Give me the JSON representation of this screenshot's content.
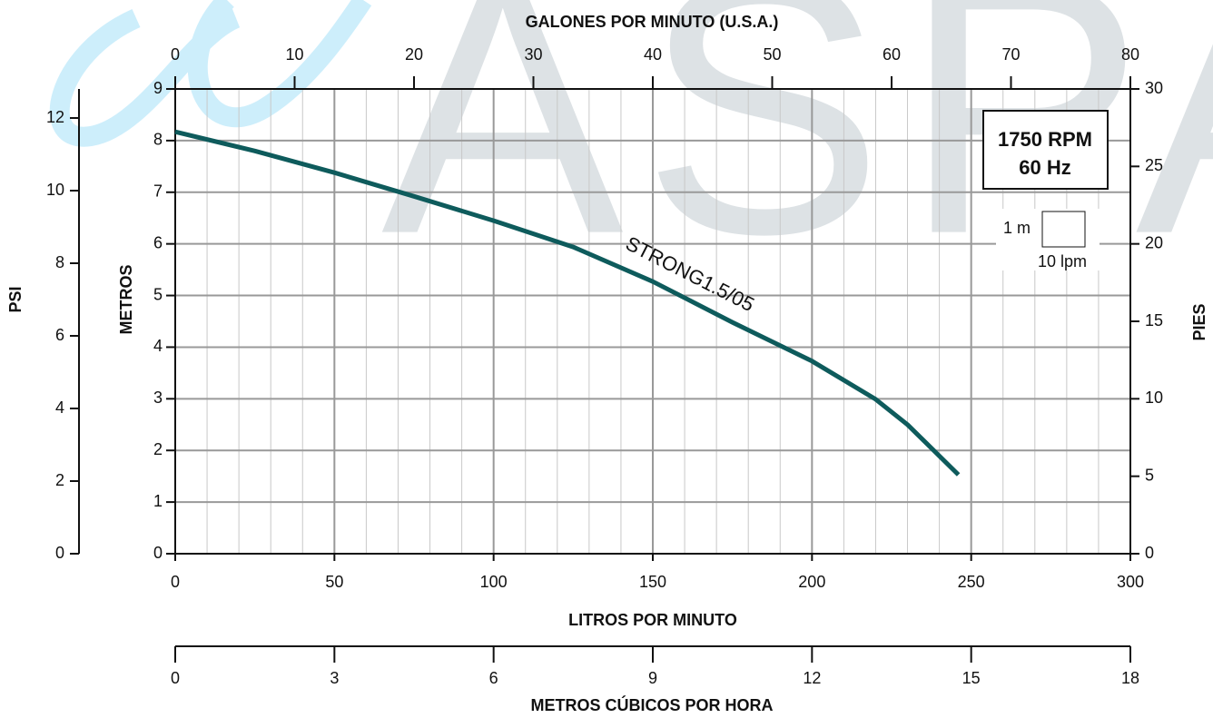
{
  "chart_data": {
    "type": "line",
    "watermark": "ASPA",
    "x_label": "LITROS POR MINUTO",
    "xlim": [
      0,
      300
    ],
    "xticks": [
      0,
      50,
      100,
      150,
      200,
      250,
      300
    ],
    "minor_xticks": [
      10,
      20,
      30,
      40,
      60,
      70,
      80,
      90,
      110,
      120,
      130,
      140,
      160,
      170,
      180,
      190,
      210,
      220,
      230,
      240,
      260,
      270,
      280,
      290
    ],
    "y_label": "METROS",
    "ylim": [
      0,
      9
    ],
    "yticks": [
      0,
      1,
      2,
      3,
      4,
      5,
      6,
      7,
      8,
      9
    ],
    "y2_label": "PIES",
    "y2lim": [
      0,
      30
    ],
    "y2ticks": [
      0,
      5,
      10,
      15,
      20,
      25,
      30
    ],
    "y3_label": "PSI",
    "y3lim": [
      0,
      12.8
    ],
    "y3ticks": [
      0,
      2,
      4,
      6,
      8,
      10,
      12
    ],
    "top_x_label": "GALONES POR MINUTO (U.S.A.)",
    "top_xlim": [
      0,
      80
    ],
    "top_xticks": [
      0,
      10,
      20,
      30,
      40,
      50,
      60,
      70,
      80
    ],
    "bottom_x_label": "METROS CÚBICOS POR HORA",
    "bottom_xlim": [
      0,
      18
    ],
    "bottom_xticks": [
      0,
      3,
      6,
      9,
      12,
      15,
      18
    ],
    "grid": true,
    "speed_box": [
      "1750 RPM",
      "60 Hz"
    ],
    "scale_box": {
      "height": "1 m",
      "width": "10 lpm"
    },
    "x": [
      0,
      25,
      50,
      75,
      100,
      125,
      150,
      175,
      200,
      220,
      230,
      246
    ],
    "series": [
      {
        "name": "STRONG1.5/05",
        "color": "#0e5b5c",
        "values": [
          8.17,
          7.8,
          7.38,
          6.92,
          6.45,
          5.94,
          5.27,
          4.48,
          3.73,
          2.99,
          2.5,
          1.53
        ]
      }
    ]
  }
}
